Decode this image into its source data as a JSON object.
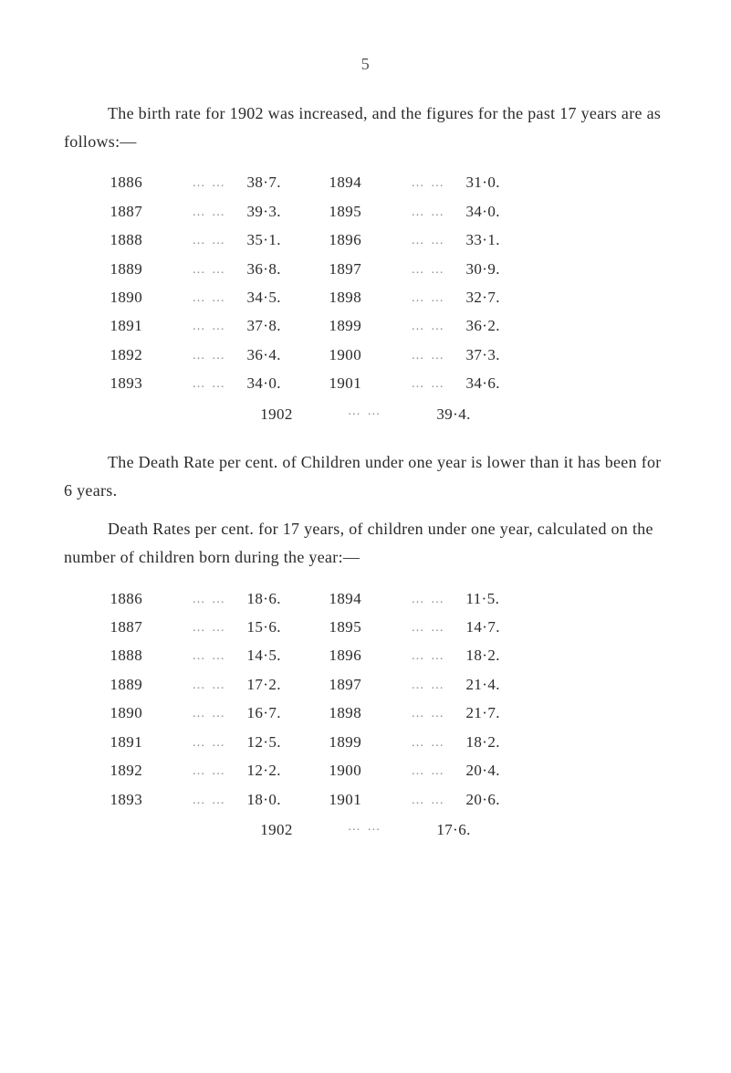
{
  "page_number": "5",
  "birth_rate": {
    "intro": "The birth rate for 1902 was increased, and the figures for the past 17 years are as follows:—",
    "rows": [
      {
        "yearL": "1886",
        "valL": "38·7.",
        "yearR": "1894",
        "valR": "31·0."
      },
      {
        "yearL": "1887",
        "valL": "39·3.",
        "yearR": "1895",
        "valR": "34·0."
      },
      {
        "yearL": "1888",
        "valL": "35·1.",
        "yearR": "1896",
        "valR": "33·1."
      },
      {
        "yearL": "1889",
        "valL": "36·8.",
        "yearR": "1897",
        "valR": "30·9."
      },
      {
        "yearL": "1890",
        "valL": "34·5.",
        "yearR": "1898",
        "valR": "32·7."
      },
      {
        "yearL": "1891",
        "valL": "37·8.",
        "yearR": "1899",
        "valR": "36·2."
      },
      {
        "yearL": "1892",
        "valL": "36·4.",
        "yearR": "1900",
        "valR": "37·3."
      },
      {
        "yearL": "1893",
        "valL": "34·0.",
        "yearR": "1901",
        "valR": "34·6."
      }
    ],
    "final_year": "1902",
    "final_val": "39·4."
  },
  "para2": "The Death Rate per cent. of Children under one year is lower than it has been for 6 years.",
  "para3": "Death Rates per cent. for 17 years, of children under one year, calculated on the number of children born during the year:—",
  "death_rate": {
    "rows": [
      {
        "yearL": "1886",
        "valL": "18·6.",
        "yearR": "1894",
        "valR": "11·5."
      },
      {
        "yearL": "1887",
        "valL": "15·6.",
        "yearR": "1895",
        "valR": "14·7."
      },
      {
        "yearL": "1888",
        "valL": "14·5.",
        "yearR": "1896",
        "valR": "18·2."
      },
      {
        "yearL": "1889",
        "valL": "17·2.",
        "yearR": "1897",
        "valR": "21·4."
      },
      {
        "yearL": "1890",
        "valL": "16·7.",
        "yearR": "1898",
        "valR": "21·7."
      },
      {
        "yearL": "1891",
        "valL": "12·5.",
        "yearR": "1899",
        "valR": "18·2."
      },
      {
        "yearL": "1892",
        "valL": "12·2.",
        "yearR": "1900",
        "valR": "20·4."
      },
      {
        "yearL": "1893",
        "valL": "18·0.",
        "yearR": "1901",
        "valR": "20·6."
      }
    ],
    "final_year": "1902",
    "final_val": "17·6."
  },
  "dots": "…   …"
}
